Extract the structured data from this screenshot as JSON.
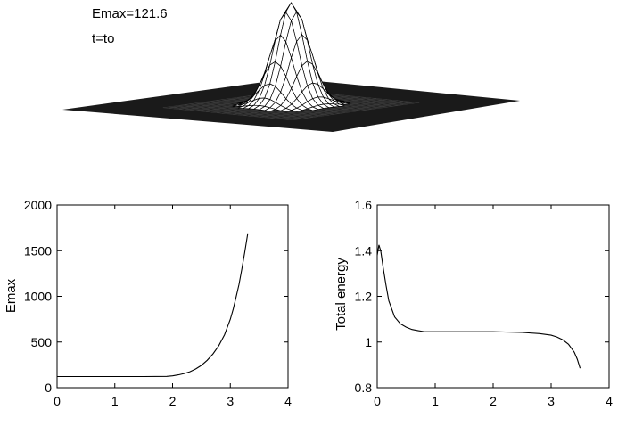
{
  "surface": {
    "annotations": [
      "Emax=121.6",
      "t=to"
    ],
    "description_type": "surface",
    "peak_height": 121.6,
    "base_color": "#1a1a1a",
    "mesh_color": "#000000"
  },
  "chart_data": [
    {
      "type": "line",
      "title": "",
      "xlabel": "",
      "ylabel": "Emax",
      "xlim": [
        0,
        4
      ],
      "ylim": [
        0,
        2000
      ],
      "xticks": [
        "0",
        "1",
        "2",
        "3",
        "4"
      ],
      "yticks": [
        "0",
        "500",
        "1000",
        "1500",
        "2000"
      ],
      "grid": false,
      "series": [
        {
          "x": [
            0.0,
            0.5,
            1.0,
            1.5,
            1.9,
            2.0,
            2.1,
            2.2,
            2.3,
            2.4,
            2.5,
            2.6,
            2.7,
            2.8,
            2.9,
            3.0,
            3.05,
            3.1,
            3.15,
            3.2,
            3.25,
            3.3
          ],
          "y": [
            121.6,
            122,
            122,
            122,
            124,
            130,
            140,
            155,
            175,
            205,
            245,
            300,
            370,
            460,
            580,
            750,
            860,
            990,
            1130,
            1300,
            1480,
            1680
          ]
        }
      ]
    },
    {
      "type": "line",
      "title": "",
      "xlabel": "",
      "ylabel": "Total energy",
      "xlim": [
        0,
        4
      ],
      "ylim": [
        0.8,
        1.6
      ],
      "xticks": [
        "0",
        "1",
        "2",
        "3",
        "4"
      ],
      "yticks": [
        "0.8",
        "1",
        "1.2",
        "1.4",
        "1.6"
      ],
      "grid": false,
      "series": [
        {
          "x": [
            0.0,
            0.03,
            0.06,
            0.1,
            0.15,
            0.2,
            0.3,
            0.4,
            0.5,
            0.6,
            0.7,
            0.8,
            1.0,
            1.5,
            2.0,
            2.5,
            2.8,
            3.0,
            3.1,
            3.2,
            3.3,
            3.4,
            3.45,
            3.5
          ],
          "y": [
            1.38,
            1.425,
            1.4,
            1.33,
            1.25,
            1.18,
            1.11,
            1.08,
            1.065,
            1.055,
            1.05,
            1.046,
            1.045,
            1.045,
            1.045,
            1.042,
            1.037,
            1.03,
            1.022,
            1.01,
            0.99,
            0.955,
            0.925,
            0.885
          ]
        }
      ]
    }
  ]
}
